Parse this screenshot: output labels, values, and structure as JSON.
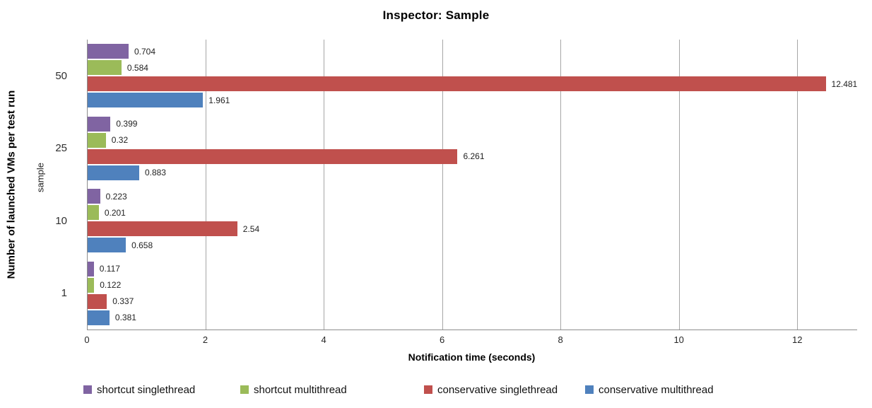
{
  "chart_data": {
    "type": "bar",
    "orientation": "horizontal",
    "title": "Inspector: Sample",
    "xlabel": "Notification time (seconds)",
    "ylabel": "Number of launched VMs per test run",
    "ylabel_secondary": "sample",
    "categories": [
      "50",
      "25",
      "10",
      "1"
    ],
    "series": [
      {
        "name": "shortcut singlethread",
        "color": "#8064A2",
        "values": [
          0.704,
          0.399,
          0.223,
          0.117
        ],
        "labels": [
          "0.704",
          "0.399",
          "0.223",
          "0.117"
        ]
      },
      {
        "name": "shortcut multithread",
        "color": "#9BBB59",
        "values": [
          0.584,
          0.32,
          0.201,
          0.122
        ],
        "labels": [
          "0.584",
          "0.32",
          "0.201",
          "0.122"
        ]
      },
      {
        "name": "conservative singlethread",
        "color": "#C0504D",
        "values": [
          12.481,
          6.261,
          2.54,
          0.337
        ],
        "labels": [
          "12.481",
          "6.261",
          "2.54",
          "0.337"
        ]
      },
      {
        "name": "conservative multithread",
        "color": "#4F81BD",
        "values": [
          1.961,
          0.883,
          0.658,
          0.381
        ],
        "labels": [
          "1.961",
          "0.883",
          "0.658",
          "0.381"
        ]
      }
    ],
    "xlim": [
      0,
      13
    ],
    "xticks": [
      0,
      2,
      4,
      6,
      8,
      10,
      12
    ],
    "grid": "vertical-major",
    "gridline_color": "#a6a6a6",
    "legend_position": "bottom"
  }
}
